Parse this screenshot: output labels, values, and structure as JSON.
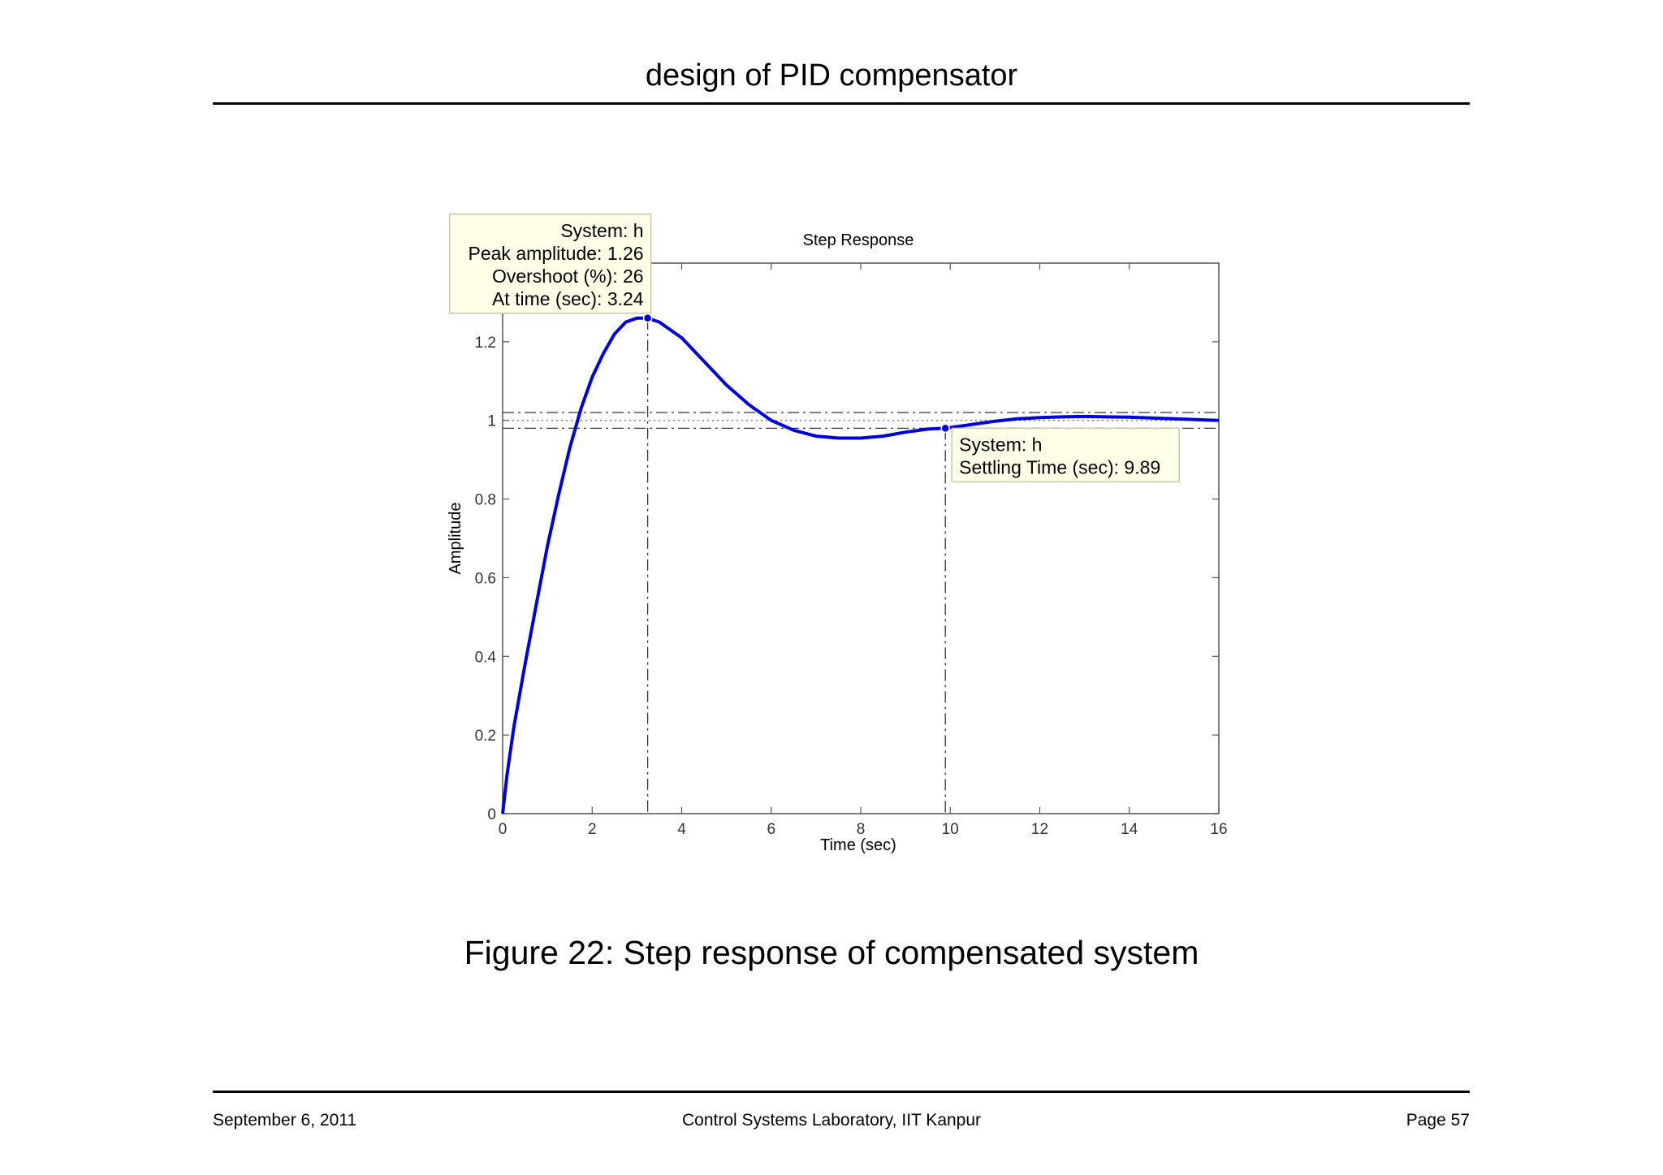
{
  "page": {
    "header_title": "design of PID compensator",
    "caption": "Figure 22: Step response of compensated system",
    "footer_left": "September 6, 2011",
    "footer_center": "Control Systems Laboratory, IIT Kanpur",
    "footer_right": "Page 57"
  },
  "chart_data": {
    "type": "line",
    "title": "Step Response",
    "xlabel": "Time (sec)",
    "ylabel": "Amplitude",
    "xlim": [
      0,
      16
    ],
    "ylim": [
      0,
      1.4
    ],
    "xticks": [
      "0",
      "2",
      "4",
      "6",
      "8",
      "10",
      "12",
      "14",
      "16"
    ],
    "yticks": [
      "0",
      "0.2",
      "0.4",
      "0.6",
      "0.8",
      "1",
      "1.2"
    ],
    "xtick_values": [
      0,
      2,
      4,
      6,
      8,
      10,
      12,
      14,
      16
    ],
    "ytick_values": [
      0,
      0.2,
      0.4,
      0.6,
      0.8,
      1,
      1.2
    ],
    "grid": false,
    "line_color": "#0000dd",
    "series": [
      {
        "x": [
          0,
          0.1,
          0.25,
          0.5,
          0.75,
          1,
          1.25,
          1.5,
          1.75,
          2,
          2.25,
          2.5,
          2.75,
          3,
          3.24,
          3.5,
          4,
          4.5,
          5,
          5.5,
          6,
          6.5,
          7,
          7.5,
          8,
          8.5,
          9,
          9.5,
          9.89,
          10.5,
          11,
          11.5,
          12,
          12.5,
          13,
          13.5,
          14,
          14.5,
          15,
          15.5,
          16
        ],
        "values": [
          0,
          0.1,
          0.22,
          0.38,
          0.53,
          0.68,
          0.81,
          0.93,
          1.03,
          1.11,
          1.17,
          1.22,
          1.25,
          1.26,
          1.26,
          1.25,
          1.21,
          1.15,
          1.09,
          1.04,
          1.0,
          0.975,
          0.96,
          0.955,
          0.955,
          0.96,
          0.97,
          0.978,
          0.98,
          0.99,
          0.998,
          1.004,
          1.007,
          1.009,
          1.01,
          1.009,
          1.008,
          1.006,
          1.004,
          1.002,
          1.0
        ]
      }
    ],
    "settling_band": {
      "final": 1.0,
      "upper": 1.02,
      "lower": 0.98
    },
    "annotations": [
      {
        "kind": "peak",
        "x": 3.24,
        "y": 1.26,
        "lines": [
          "System: h",
          "Peak amplitude: 1.26",
          "Overshoot (%): 26",
          "At time (sec): 3.24"
        ]
      },
      {
        "kind": "settling",
        "x": 9.89,
        "y": 0.98,
        "lines": [
          "System: h",
          "Settling Time (sec): 9.89"
        ]
      }
    ]
  }
}
